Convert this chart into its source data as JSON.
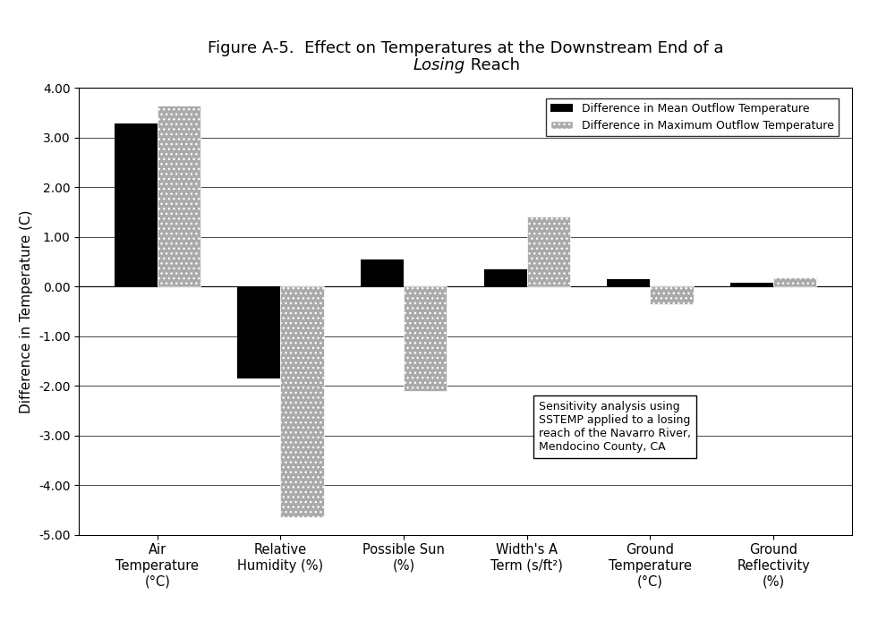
{
  "title_line1": "Figure A-5.  Effect on Temperatures at the Downstream End of a",
  "title_line2_italic": "Losing",
  "title_line2_rest": " Reach",
  "ylabel": "Difference in Temperature (C)",
  "categories": [
    "Air\nTemperature\n(°C)",
    "Relative\nHumidity (%)",
    "Possible Sun\n(%)",
    "Width's A\nTerm (s/ft²)",
    "Ground\nTemperature\n(°C)",
    "Ground\nReflectivity\n(%)"
  ],
  "mean_values": [
    3.28,
    -1.85,
    0.55,
    0.35,
    0.15,
    0.07
  ],
  "max_values": [
    3.65,
    -4.65,
    -2.1,
    1.42,
    -0.35,
    0.18
  ],
  "mean_color": "#000000",
  "max_color": "#aaaaaa",
  "ylim": [
    -5.0,
    4.0
  ],
  "yticks": [
    -5.0,
    -4.0,
    -3.0,
    -2.0,
    -1.0,
    0.0,
    1.0,
    2.0,
    3.0,
    4.0
  ],
  "ytick_labels": [
    "-5.00",
    "-4.00",
    "-3.00",
    "-2.00",
    "-1.00",
    "0.00",
    "1.00",
    "2.00",
    "3.00",
    "4.00"
  ],
  "annotation_text": "Sensitivity analysis using\nSSTEMP applied to a losing\nreach of the Navarro River,\nMendocino County, CA",
  "legend_mean": "Difference in Mean Outflow Temperature",
  "legend_max": "Difference in Maximum Outflow Temperature",
  "background_color": "#ffffff",
  "bar_width": 0.35
}
